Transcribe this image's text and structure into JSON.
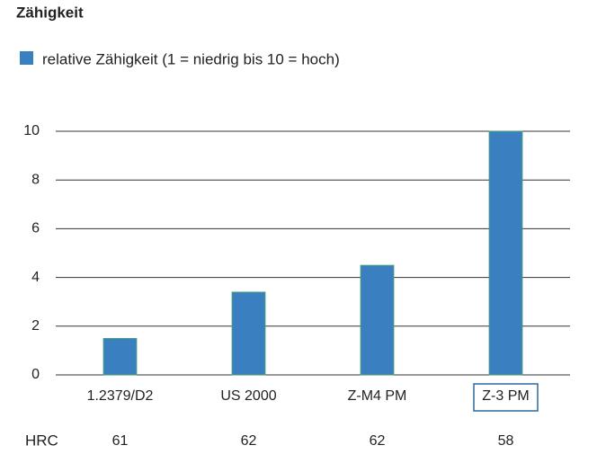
{
  "chart_data": {
    "type": "bar",
    "title": "Zähigkeit",
    "categories": [
      "1.2379/D2",
      "US 2000",
      "Z-M4 PM",
      "Z-3 PM"
    ],
    "series": [
      {
        "name": "relative Zähigkeit (1 = niedrig bis 10 = hoch)",
        "color": "#3a7fbf",
        "values": [
          1.5,
          3.4,
          4.5,
          10
        ]
      }
    ],
    "ylim": [
      0,
      10
    ],
    "yticks": [
      0,
      2,
      4,
      6,
      8,
      10
    ],
    "grid": true,
    "hrc": {
      "label": "HRC",
      "values": [
        61,
        62,
        62,
        58
      ]
    }
  }
}
